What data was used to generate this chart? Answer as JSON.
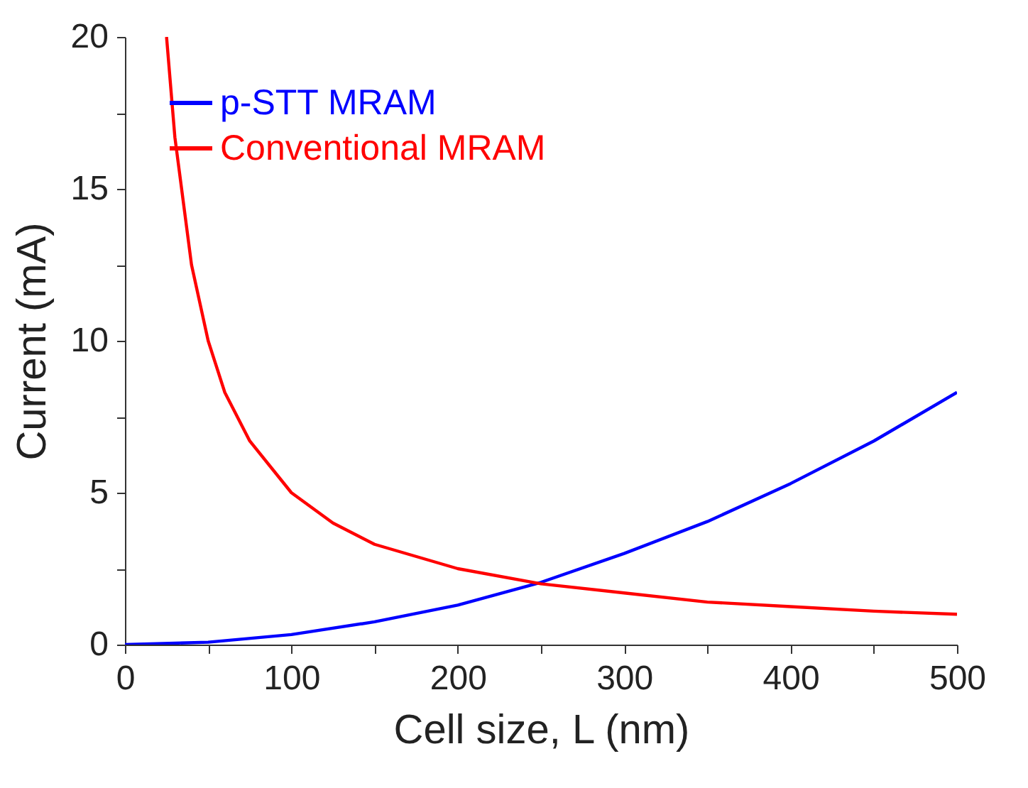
{
  "chart_data": {
    "type": "line",
    "xlabel": "Cell size, L (nm)",
    "ylabel": "Current (mA)",
    "xlim": [
      0,
      500
    ],
    "ylim": [
      0,
      20
    ],
    "xticks": [
      0,
      {
        "value": 50,
        "label": null
      },
      100,
      {
        "value": 150,
        "label": null
      },
      200,
      {
        "value": 250,
        "label": null
      },
      300,
      {
        "value": 350,
        "label": null
      },
      400,
      {
        "value": 450,
        "label": null
      },
      500
    ],
    "yticks": [
      0,
      {
        "value": 2.5,
        "label": null
      },
      5,
      {
        "value": 7.5,
        "label": null
      },
      10,
      {
        "value": 12.5,
        "label": null
      },
      15,
      {
        "value": 17.5,
        "label": null
      },
      20
    ],
    "grid": false,
    "legend": "top left",
    "line_style": "solid",
    "series": [
      {
        "name": "p-STT MRAM",
        "color": "#0000ff",
        "x": [
          0,
          50,
          100,
          150,
          200,
          250,
          300,
          350,
          400,
          450,
          500
        ],
        "values": [
          0,
          0.08,
          0.33,
          0.75,
          1.3,
          2.05,
          3.0,
          4.05,
          5.3,
          6.7,
          8.3
        ]
      },
      {
        "name": "Conventional MRAM",
        "color": "#ff0000",
        "x": [
          25,
          30,
          40,
          50,
          60,
          75,
          100,
          125,
          150,
          200,
          250,
          300,
          350,
          400,
          450,
          500
        ],
        "values": [
          20,
          16.7,
          12.5,
          10,
          8.3,
          6.7,
          5,
          4,
          3.3,
          2.5,
          2,
          1.7,
          1.4,
          1.25,
          1.1,
          1.0
        ]
      }
    ]
  }
}
